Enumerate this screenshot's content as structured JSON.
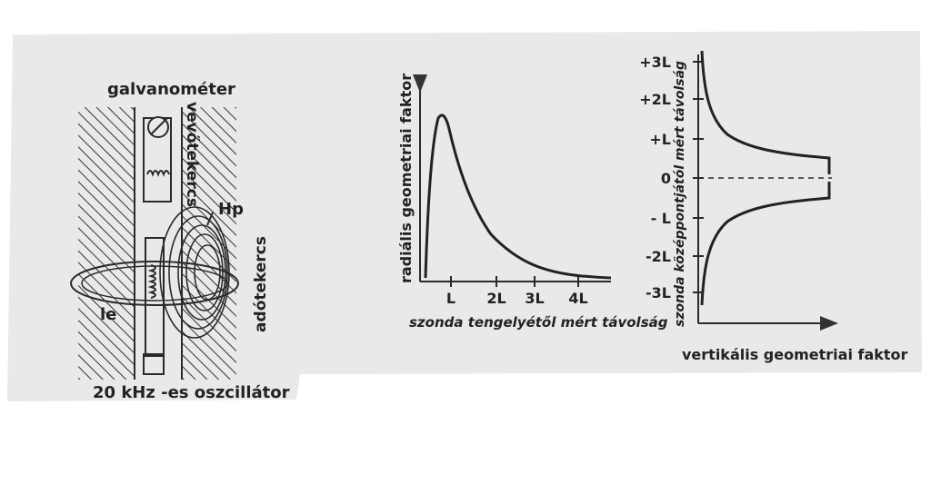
{
  "colors": {
    "paper": "#e9e9e9",
    "ink": "#2a2a2a"
  },
  "left_diagram": {
    "top_label": "galvanométer",
    "receiver_coil": "vevőtekercs",
    "transmitter_coil": "adótekercs",
    "field_label": "Hp",
    "loop_label": "le",
    "bottom_label": "20 kHz -es oszcillátor"
  },
  "middle_chart": {
    "ylabel": "radiális geometriai faktor",
    "xlabel": "szonda tengelyétől mért távolság",
    "x_ticks": [
      "L",
      "2L",
      "3L",
      "4L"
    ]
  },
  "right_chart": {
    "ylabel": "szonda középpontjától mért távolság",
    "xlabel": "vertikális geometriai faktor",
    "y_ticks": [
      "+3L",
      "+2L",
      "+L",
      "0",
      "- L",
      "-2L",
      "-3L"
    ]
  }
}
